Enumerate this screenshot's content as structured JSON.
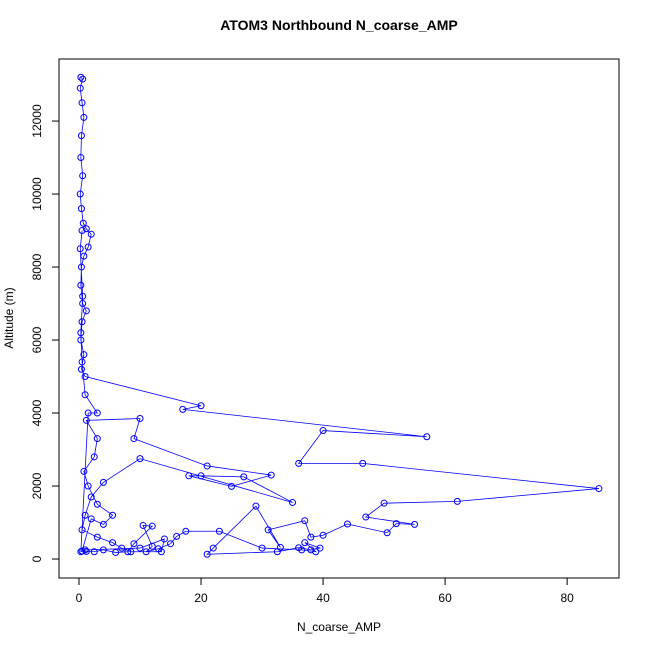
{
  "chart_data": {
    "type": "line",
    "title": "ATOM3 Northbound N_coarse_AMP",
    "x_label": "N_coarse_AMP",
    "y_label": "Altitude (m)",
    "color": "#0000ff",
    "marker": "open-circle",
    "x": [
      0.3,
      0.6,
      0.2,
      0.5,
      0.8,
      0.4,
      0.3,
      0.6,
      0.2,
      0.4,
      0.7,
      1.2,
      2.0,
      1.5,
      0.8,
      0.4,
      0.3,
      0.6,
      1.2,
      0.5,
      0.3,
      0.8,
      0.4,
      1.0,
      20,
      17,
      57,
      40,
      36,
      46.5,
      85.2,
      62,
      50,
      47,
      55,
      52,
      50.5,
      44,
      40,
      38,
      37,
      31,
      33,
      29,
      22,
      21,
      32.5,
      36,
      38,
      39.5,
      37,
      38.8,
      36.5,
      30,
      23,
      17.5,
      16,
      15,
      13,
      11,
      12,
      10.5,
      12,
      9,
      8,
      6,
      4,
      2.5,
      1.2,
      0.5,
      2,
      4,
      5.5,
      3,
      1.5,
      0.8,
      2.5,
      3.0,
      1.2,
      10,
      9,
      21,
      31.5,
      25,
      18,
      20,
      27,
      35,
      10,
      4,
      2,
      1,
      0.5,
      3,
      5.5,
      7,
      8.5,
      13.5,
      14,
      10,
      1,
      0.3,
      1.5,
      3.0,
      1,
      0.5,
      0.3,
      0.6,
      0.2,
      0.5
    ],
    "values": [
      13200,
      13150,
      12900,
      12500,
      12100,
      11600,
      11000,
      10500,
      10000,
      9600,
      9200,
      9050,
      8900,
      8550,
      8300,
      8000,
      7500,
      7000,
      6800,
      6500,
      6000,
      5600,
      5200,
      5000,
      4200,
      4100,
      3350,
      3520,
      2620,
      2620,
      1930,
      1580,
      1530,
      1150,
      950,
      970,
      720,
      960,
      650,
      600,
      1050,
      800,
      320,
      1450,
      300,
      130,
      200,
      310,
      250,
      300,
      450,
      200,
      250,
      300,
      760,
      760,
      620,
      420,
      280,
      200,
      350,
      920,
      900,
      420,
      200,
      180,
      250,
      200,
      210,
      220,
      1100,
      950,
      1200,
      1500,
      2000,
      2400,
      2800,
      3300,
      3800,
      3850,
      3300,
      2550,
      2300,
      1990,
      2280,
      2280,
      2250,
      1550,
      2750,
      2100,
      1700,
      1200,
      800,
      600,
      450,
      300,
      200,
      200,
      550,
      300,
      250,
      200,
      4000,
      4000,
      4500,
      5400,
      6200,
      7200,
      8500,
      9000
    ],
    "xlim": [
      -3.28,
      88.5
    ],
    "ylim": [
      -520,
      13700
    ],
    "xticks": [
      0,
      20,
      40,
      60,
      80
    ],
    "yticks": [
      0,
      2000,
      4000,
      6000,
      8000,
      10000,
      12000
    ]
  }
}
